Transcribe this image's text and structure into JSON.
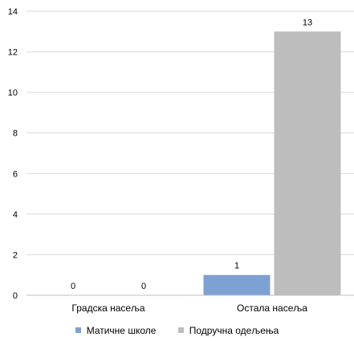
{
  "chart_data": {
    "type": "bar",
    "title": "",
    "xlabel": "",
    "ylabel": "",
    "categories": [
      "Градска насеља",
      "Остала насеља"
    ],
    "series": [
      {
        "name": "Матичне школе",
        "values": [
          0,
          1
        ],
        "color": "#7ea1d4"
      },
      {
        "name": "Подручна одељења",
        "values": [
          0,
          13
        ],
        "color": "#bdbdbd"
      }
    ],
    "ylim": [
      0,
      14
    ],
    "yticks": [
      0,
      2,
      4,
      6,
      8,
      10,
      12,
      14
    ],
    "grid": true,
    "data_labels": true,
    "legend_position": "bottom"
  }
}
